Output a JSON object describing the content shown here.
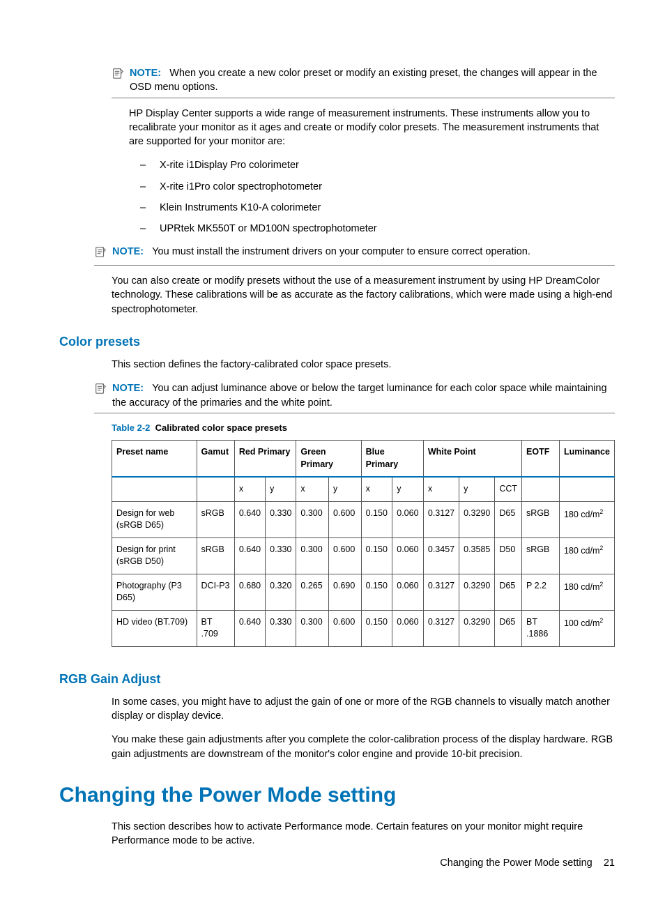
{
  "colors": {
    "accent": "#0073b6",
    "text": "#000000",
    "rule": "#7a7a7a",
    "icon": "#6b6b6b",
    "table_border": "#555555"
  },
  "note1": {
    "label": "NOTE:",
    "text": "When you create a new color preset or modify an existing preset, the changes will appear in the OSD menu options."
  },
  "intro_para": "HP Display Center supports a wide range of measurement instruments. These instruments allow you to recalibrate your monitor as it ages and create or modify color presets. The measurement instruments that are supported for your monitor are:",
  "instruments": [
    "X-rite i1Display Pro colorimeter",
    "X-rite i1Pro color spectrophotometer",
    "Klein Instruments K10-A colorimeter",
    "UPRtek MK550T or MD100N spectrophotometer"
  ],
  "note2": {
    "label": "NOTE:",
    "text": "You must install the instrument drivers on your computer to ensure correct operation."
  },
  "post_note_para": "You can also create or modify presets without the use of a measurement instrument by using HP DreamColor technology. These calibrations will be as accurate as the factory calibrations, which were made using a high-end spectrophotometer.",
  "presets": {
    "heading": "Color presets",
    "intro": "This section defines the factory-calibrated color space presets.",
    "note": {
      "label": "NOTE:",
      "text": "You can adjust luminance above or below the target luminance for each color space while maintaining the accuracy of the primaries and the white point."
    }
  },
  "table": {
    "caption_num": "Table 2-2",
    "caption_title": "Calibrated color space presets",
    "head": {
      "preset": "Preset name",
      "gamut": "Gamut",
      "red": "Red Primary",
      "green": "Green Primary",
      "blue": "Blue Primary",
      "white": "White Point",
      "eotf": "EOTF",
      "lum": "Luminance"
    },
    "sub": {
      "x": "x",
      "y": "y",
      "cct": "CCT"
    },
    "rows": [
      {
        "preset": "Design for web (sRGB D65)",
        "gamut": "sRGB",
        "rx": "0.640",
        "ry": "0.330",
        "gx": "0.300",
        "gy": "0.600",
        "bx": "0.150",
        "by": "0.060",
        "wx": "0.3127",
        "wy": "0.3290",
        "cct": "D65",
        "eotf": "sRGB",
        "lum": "180 cd/m",
        "lum_sup": "2"
      },
      {
        "preset": "Design for print (sRGB D50)",
        "gamut": "sRGB",
        "rx": "0.640",
        "ry": "0.330",
        "gx": "0.300",
        "gy": "0.600",
        "bx": "0.150",
        "by": "0.060",
        "wx": "0.3457",
        "wy": "0.3585",
        "cct": "D50",
        "eotf": "sRGB",
        "lum": "180 cd/m",
        "lum_sup": "2"
      },
      {
        "preset": "Photography (P3 D65)",
        "gamut": "DCI-P3",
        "rx": "0.680",
        "ry": "0.320",
        "gx": "0.265",
        "gy": "0.690",
        "bx": "0.150",
        "by": "0.060",
        "wx": "0.3127",
        "wy": "0.3290",
        "cct": "D65",
        "eotf": "P 2.2",
        "lum": "180 cd/m",
        "lum_sup": "2"
      },
      {
        "preset": "HD video (BT.709)",
        "gamut": "BT .709",
        "rx": "0.640",
        "ry": "0.330",
        "gx": "0.300",
        "gy": "0.600",
        "bx": "0.150",
        "by": "0.060",
        "wx": "0.3127",
        "wy": "0.3290",
        "cct": "D65",
        "eotf": "BT .1886",
        "lum": "100 cd/m",
        "lum_sup": "2"
      }
    ]
  },
  "rgb": {
    "heading": "RGB Gain Adjust",
    "p1": "In some cases, you might have to adjust the gain of one or more of the RGB channels to visually match another display or display device.",
    "p2": "You make these gain adjustments after you complete the color-calibration process of the display hardware. RGB gain adjustments are downstream of the monitor's color engine and provide 10-bit precision."
  },
  "power": {
    "heading": "Changing the Power Mode setting",
    "p1": "This section describes how to activate Performance mode. Certain features on your monitor might require Performance mode to be active."
  },
  "footer": {
    "title": "Changing the Power Mode setting",
    "page": "21"
  }
}
